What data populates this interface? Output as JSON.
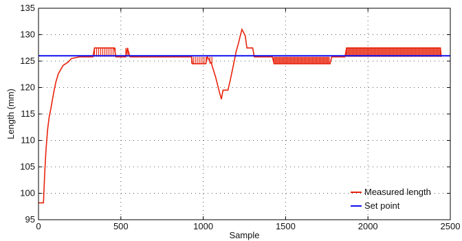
{
  "chart_data": {
    "type": "line",
    "title": "",
    "xlabel": "Sample",
    "ylabel": "Length (mm)",
    "xlim": [
      0,
      2500
    ],
    "ylim": [
      95,
      135
    ],
    "xticks": [
      0,
      500,
      1000,
      1500,
      2000,
      2500
    ],
    "yticks": [
      95,
      100,
      105,
      110,
      115,
      120,
      125,
      130,
      135
    ],
    "grid": true,
    "legend_position": "bottom-right",
    "series": [
      {
        "name": "Measured length",
        "color": "#e8220a",
        "style": "noisy",
        "points": [
          [
            0,
            98.2
          ],
          [
            30,
            98.2
          ],
          [
            38,
            104
          ],
          [
            45,
            108
          ],
          [
            55,
            112
          ],
          [
            65,
            114.5
          ],
          [
            75,
            116
          ],
          [
            85,
            117.8
          ],
          [
            95,
            119.5
          ],
          [
            105,
            121
          ],
          [
            120,
            122.6
          ],
          [
            135,
            123.4
          ],
          [
            150,
            124.2
          ],
          [
            165,
            124.5
          ],
          [
            180,
            124.8
          ],
          [
            200,
            125.5
          ],
          [
            250,
            125.8
          ],
          [
            330,
            125.8
          ],
          [
            340,
            127.5
          ],
          [
            460,
            127.5
          ],
          [
            470,
            125.8
          ],
          [
            530,
            125.8
          ],
          [
            540,
            127.5
          ],
          [
            555,
            125.8
          ],
          [
            930,
            125.8
          ],
          [
            935,
            124.5
          ],
          [
            1015,
            124.5
          ],
          [
            1025,
            125.8
          ],
          [
            1050,
            124.5
          ],
          [
            1075,
            122
          ],
          [
            1095,
            119.5
          ],
          [
            1110,
            117.8
          ],
          [
            1120,
            119.5
          ],
          [
            1150,
            119.5
          ],
          [
            1165,
            121.5
          ],
          [
            1185,
            124.5
          ],
          [
            1200,
            126.8
          ],
          [
            1215,
            128.5
          ],
          [
            1225,
            129.8
          ],
          [
            1235,
            131
          ],
          [
            1255,
            129.8
          ],
          [
            1265,
            127.5
          ],
          [
            1300,
            127.5
          ],
          [
            1310,
            125.8
          ],
          [
            1420,
            125.8
          ],
          [
            1430,
            124.5
          ],
          [
            1770,
            124.5
          ],
          [
            1780,
            125.8
          ],
          [
            1860,
            125.8
          ],
          [
            1870,
            127.5
          ],
          [
            2440,
            127.5
          ],
          [
            2445,
            125.8
          ]
        ],
        "noise_bands": [
          {
            "x": [
              340,
              470
            ],
            "y": [
              125.8,
              127.5
            ]
          },
          {
            "x": [
              530,
              555
            ],
            "y": [
              125.8,
              127.5
            ]
          },
          {
            "x": [
              930,
              1020
            ],
            "y": [
              124.5,
              125.8
            ]
          },
          {
            "x": [
              1040,
              1055
            ],
            "y": [
              124.5,
              125.8
            ]
          },
          {
            "x": [
              1430,
              1770
            ],
            "y": [
              124.5,
              125.8
            ],
            "dense": true
          },
          {
            "x": [
              1870,
              2440
            ],
            "y": [
              125.8,
              127.5
            ],
            "dense": true
          }
        ]
      },
      {
        "name": "Set point",
        "color": "#1010ee",
        "points": [
          [
            0,
            126
          ],
          [
            2500,
            126
          ]
        ]
      }
    ]
  }
}
